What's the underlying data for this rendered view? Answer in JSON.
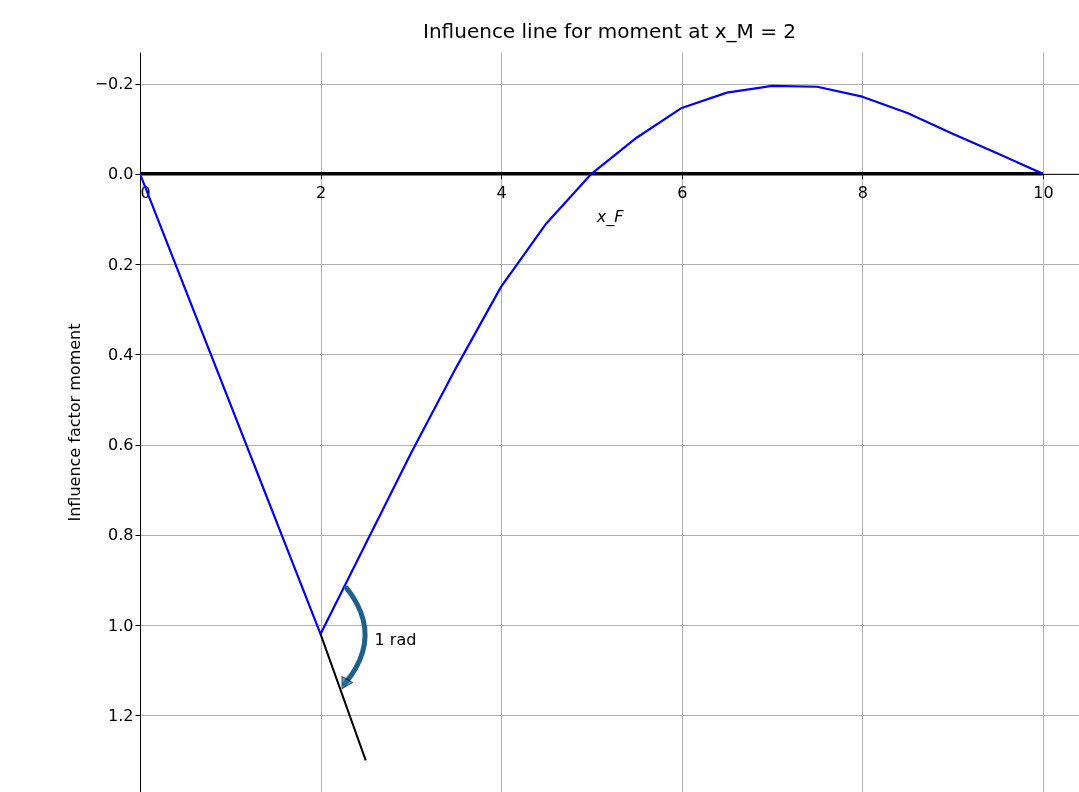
{
  "chart_data": {
    "type": "line",
    "title": "Influence line for moment at x_M = 2",
    "xlabel": "x_F",
    "ylabel": "Influence factor moment",
    "series": [
      {
        "color": "#000000",
        "x": [
          0,
          10
        ],
        "values": [
          0,
          0
        ]
      },
      {
        "color": "#0000ff",
        "x": [
          0,
          2,
          2.5,
          3,
          3.5,
          4,
          4.5,
          5,
          5.5,
          6,
          6.5,
          7,
          7.5,
          8,
          8.5,
          9,
          9.5,
          10
        ],
        "values": [
          0,
          1.02,
          0.82,
          0.62,
          0.43,
          0.25,
          0.11,
          0,
          -0.08,
          -0.146,
          -0.18,
          -0.195,
          -0.193,
          -0.171,
          -0.135,
          -0.089,
          -0.045,
          0
        ]
      },
      {
        "color": "#000000",
        "x": [
          2,
          2.5
        ],
        "values": [
          1.02,
          1.3
        ]
      }
    ],
    "annotations": [
      "1 rad"
    ],
    "xlim": [
      0,
      10.4
    ],
    "ylim": [
      1.37,
      -0.27
    ],
    "xticks": [
      0,
      2,
      4,
      6,
      8,
      10
    ],
    "yticks": [
      -0.2,
      {
        "value": 0,
        "label": "0.0"
      },
      0.2,
      0.4,
      0.6,
      0.8,
      {
        "value": 1,
        "label": "1.0"
      },
      1.2
    ],
    "grid": true,
    "marker": "none",
    "line_style": "solid"
  }
}
